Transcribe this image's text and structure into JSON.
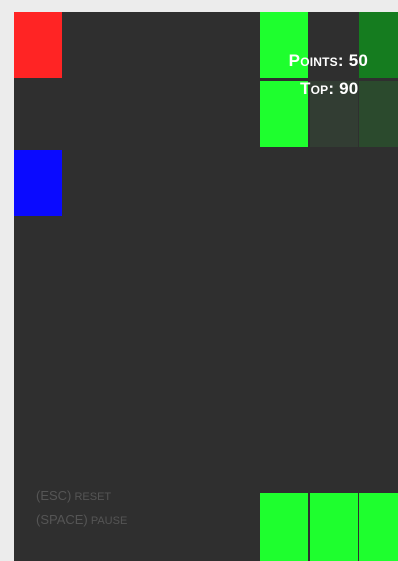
{
  "score": {
    "points_label": "Points",
    "points_value": "50",
    "top_label": "Top",
    "top_value": "90"
  },
  "controls": [
    {
      "key": "(ESC)",
      "action": "RESET"
    },
    {
      "key": "(SPACE)",
      "action": "PAUSE"
    }
  ],
  "colors": {
    "background": "#2f2f2f",
    "red_block": "#ff2424",
    "blue_block": "#0a0aff",
    "green_block": "#1eff2e",
    "dark_green_block": "#157c1f",
    "faded_green_block": "#2b4a2d"
  },
  "blocks": [
    {
      "name": "red",
      "color": "red"
    },
    {
      "name": "blue",
      "color": "blue"
    },
    {
      "name": "green",
      "color": "green"
    }
  ]
}
